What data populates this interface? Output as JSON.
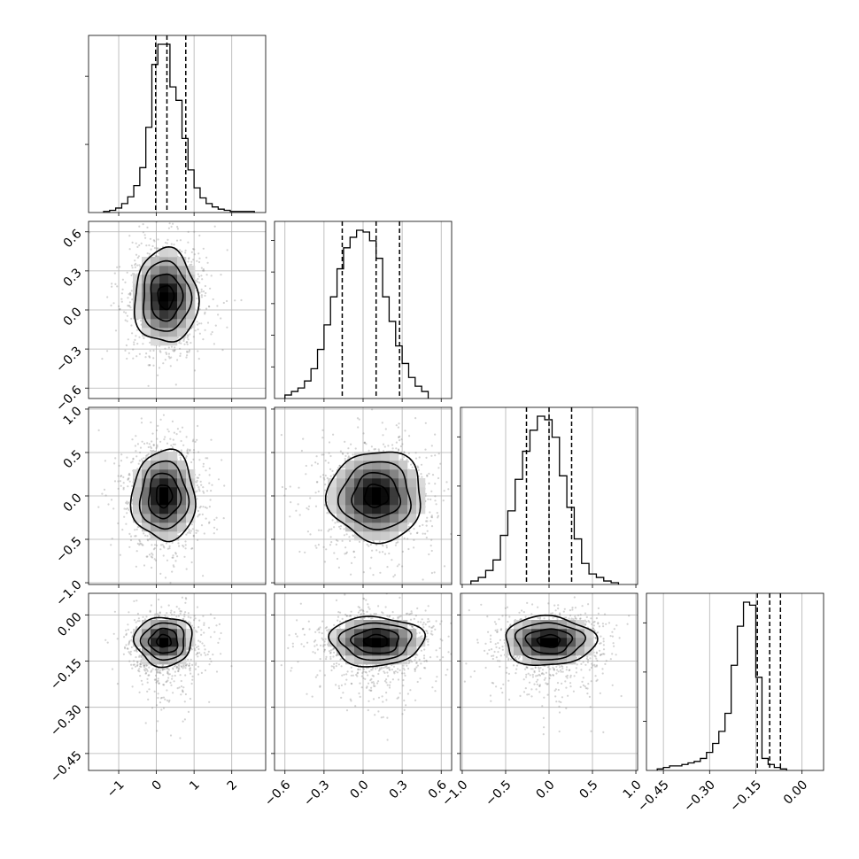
{
  "chart_data": {
    "type": "corner",
    "n_params": 4,
    "axes": [
      {
        "range": [
          -1.8,
          2.9
        ],
        "ticks": [
          -1,
          0,
          1,
          2
        ],
        "tick_labels": [
          "−1",
          "0",
          "1",
          "2"
        ]
      },
      {
        "range": [
          -0.68,
          0.68
        ],
        "ticks": [
          -0.6,
          -0.3,
          0.0,
          0.3,
          0.6
        ],
        "tick_labels": [
          "−0.6",
          "−0.3",
          "0.0",
          "0.3",
          "0.6"
        ]
      },
      {
        "range": [
          -1.02,
          1.02
        ],
        "ticks": [
          -1.0,
          -0.5,
          0.0,
          0.5,
          1.0
        ],
        "tick_labels": [
          "−1.0",
          "−0.5",
          "0.0",
          "0.5",
          "1.0"
        ]
      },
      {
        "range": [
          -0.505,
          0.07
        ],
        "ticks": [
          -0.45,
          -0.3,
          -0.15,
          0.0
        ],
        "tick_labels": [
          "−0.45",
          "−0.30",
          "−0.15",
          "0.00"
        ]
      }
    ],
    "marginals": [
      {
        "quantiles": [
          -0.02,
          0.28,
          0.78
        ],
        "bins": {
          "edges_start": -1.4,
          "bin_width": 0.16,
          "counts": [
            1,
            2,
            4,
            8,
            14,
            24,
            40,
            76,
            132,
            150,
            150,
            112,
            100,
            66,
            38,
            22,
            13,
            8,
            5,
            3,
            2,
            1,
            1,
            1,
            1
          ]
        }
      },
      {
        "quantiles": [
          -0.16,
          0.1,
          0.28
        ],
        "bins": {
          "edges_start": -0.6,
          "bin_width": 0.05,
          "counts": [
            2,
            4,
            6,
            10,
            17,
            28,
            42,
            58,
            74,
            86,
            92,
            96,
            95,
            90,
            80,
            58,
            44,
            30,
            20,
            12,
            7,
            4
          ]
        }
      },
      {
        "quantiles": [
          -0.26,
          0.0,
          0.26
        ],
        "bins": {
          "edges_start": -0.9,
          "bin_width": 0.085,
          "counts": [
            2,
            4,
            8,
            14,
            28,
            42,
            60,
            76,
            88,
            96,
            94,
            84,
            62,
            44,
            26,
            12,
            6,
            4,
            2,
            1
          ]
        }
      },
      {
        "quantiles": [
          -0.145,
          -0.105,
          -0.07
        ],
        "bins": {
          "edges_start": -0.47,
          "bin_width": 0.02,
          "counts": [
            1,
            2,
            3,
            3,
            4,
            5,
            6,
            8,
            12,
            18,
            26,
            38,
            70,
            96,
            112,
            110,
            62,
            8,
            4,
            2,
            1
          ]
        }
      }
    ],
    "joints": [
      {
        "xi": 0,
        "yi": 1,
        "mean": [
          0.25,
          0.1
        ],
        "sigma": [
          0.42,
          0.18
        ],
        "rho": 0.05,
        "contours_sigma": [
          0.5,
          1.0,
          1.5,
          2.0
        ]
      },
      {
        "xi": 0,
        "yi": 2,
        "mean": [
          0.2,
          0.0
        ],
        "sigma": [
          0.42,
          0.26
        ],
        "rho": 0.0,
        "contours_sigma": [
          0.5,
          1.0,
          1.5,
          2.0
        ]
      },
      {
        "xi": 1,
        "yi": 2,
        "mean": [
          0.1,
          0.0
        ],
        "sigma": [
          0.18,
          0.26
        ],
        "rho": 0.0,
        "contours_sigma": [
          0.5,
          1.0,
          1.5,
          2.0
        ]
      },
      {
        "xi": 0,
        "yi": 3,
        "mean": [
          0.2,
          -0.085
        ],
        "sigma": [
          0.38,
          0.04
        ],
        "rho": 0.0,
        "contours_sigma": [
          0.5,
          1.0,
          1.5,
          2.0
        ]
      },
      {
        "xi": 1,
        "yi": 3,
        "mean": [
          0.1,
          -0.085
        ],
        "sigma": [
          0.18,
          0.04
        ],
        "rho": 0.0,
        "contours_sigma": [
          0.5,
          1.0,
          1.5,
          2.0
        ]
      },
      {
        "xi": 2,
        "yi": 3,
        "mean": [
          0.0,
          -0.085
        ],
        "sigma": [
          0.26,
          0.04
        ],
        "rho": 0.0,
        "contours_sigma": [
          0.5,
          1.0,
          1.5,
          2.0
        ]
      }
    ],
    "grid": true,
    "colors": {
      "line": "#000000",
      "grid": "#b0b0b0",
      "points": "#808080",
      "frame": "#000000"
    }
  }
}
